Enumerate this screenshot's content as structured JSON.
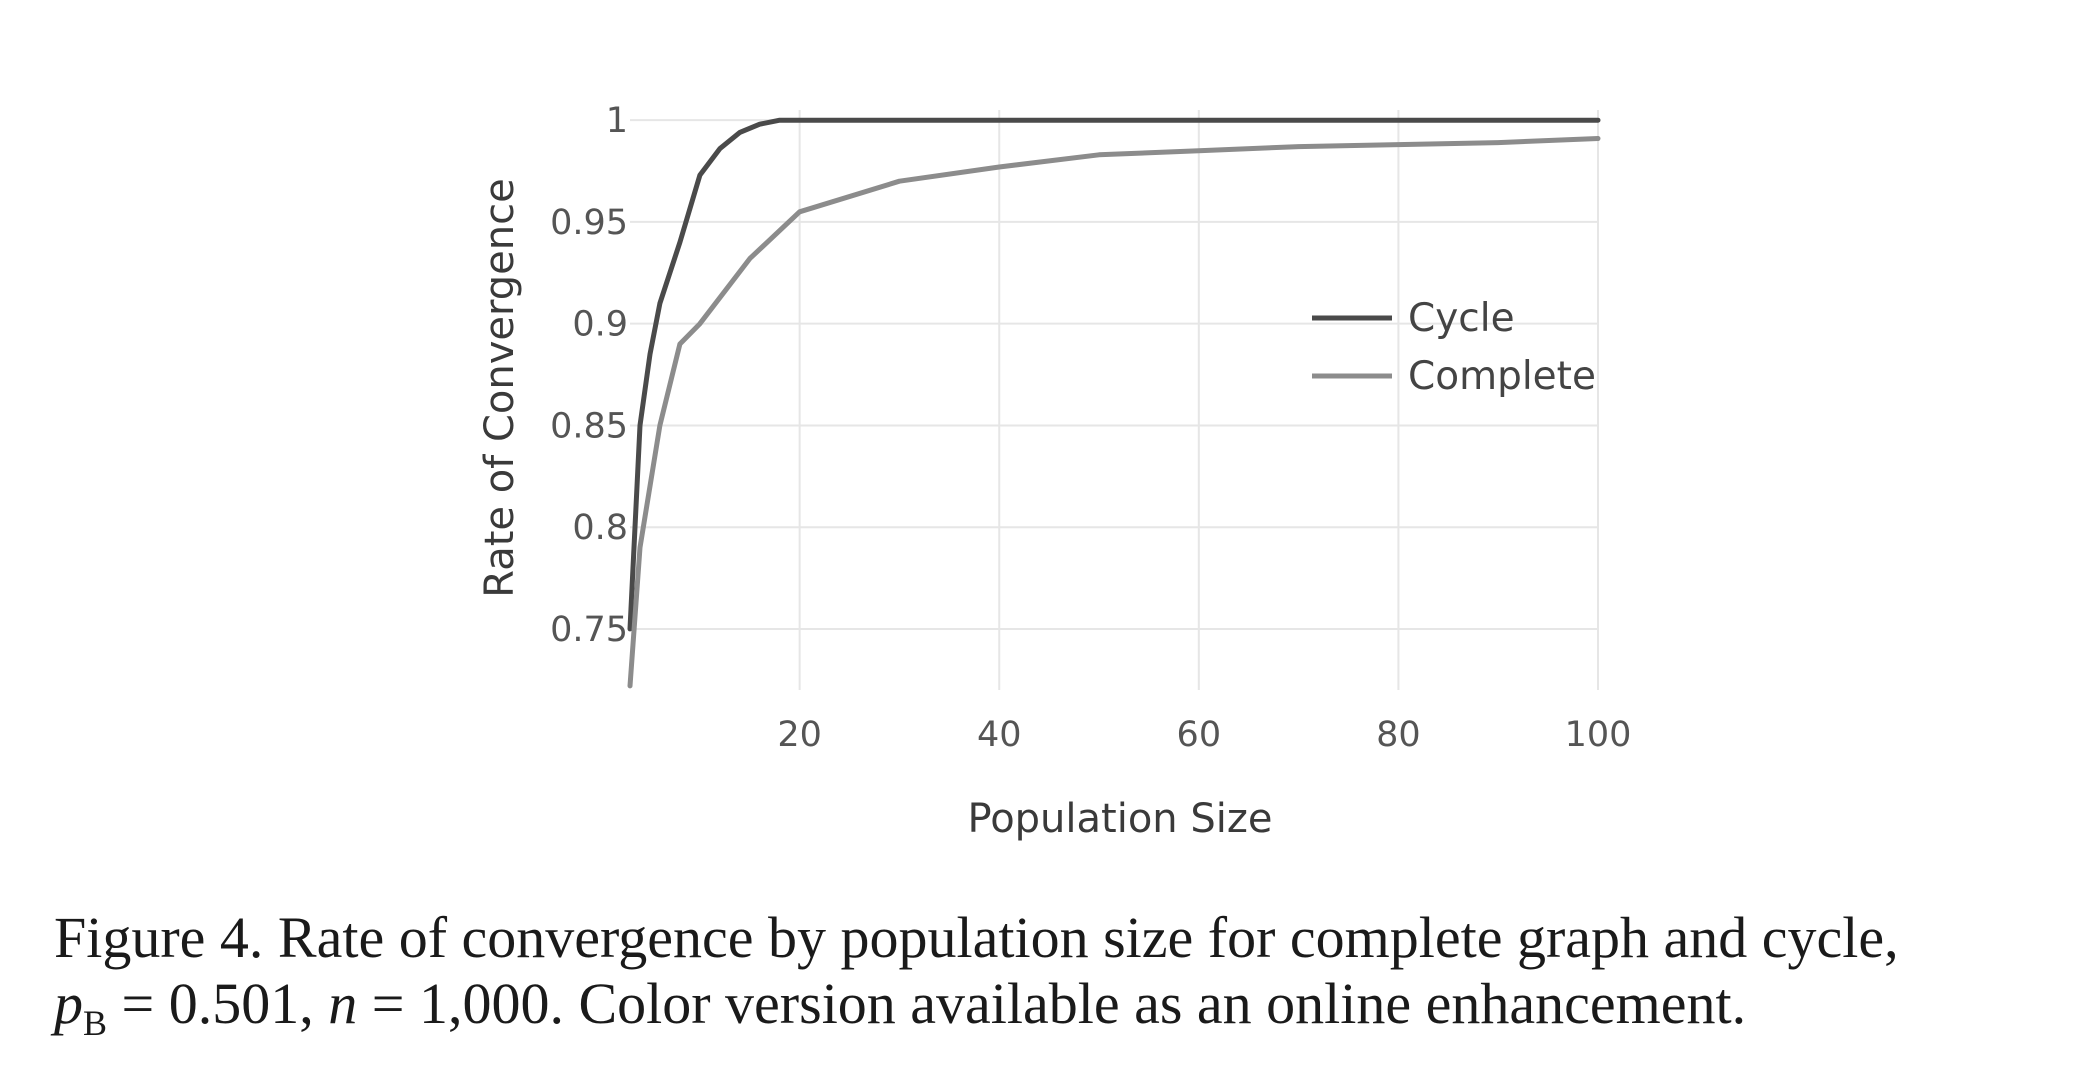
{
  "chart_data": {
    "type": "line",
    "xlabel": "Population Size",
    "ylabel": "Rate of Convergence",
    "xlim": [
      3,
      100
    ],
    "ylim": [
      0.72,
      1.005
    ],
    "x_ticks": [
      20,
      40,
      60,
      80,
      100
    ],
    "x_tick_labels": [
      "20",
      "40",
      "60",
      "80",
      "100"
    ],
    "y_ticks": [
      0.75,
      0.8,
      0.85,
      0.9,
      0.95,
      1
    ],
    "y_tick_labels": [
      "0.75",
      "0.8",
      "0.85",
      "0.9",
      "0.95",
      "1"
    ],
    "grid": true,
    "legend_position": "center-right",
    "series": [
      {
        "name": "Cycle",
        "color": "#4a4a4a",
        "x": [
          3,
          4,
          5,
          6,
          8,
          10,
          12,
          14,
          16,
          18,
          20,
          30,
          40,
          50,
          60,
          70,
          80,
          90,
          100
        ],
        "y": [
          0.75,
          0.85,
          0.885,
          0.91,
          0.94,
          0.973,
          0.986,
          0.994,
          0.998,
          1.0,
          1.0,
          1.0,
          1.0,
          1.0,
          1.0,
          1.0,
          1.0,
          1.0,
          1.0
        ]
      },
      {
        "name": "Complete",
        "color": "#8c8c8c",
        "x": [
          3,
          4,
          6,
          8,
          10,
          15,
          20,
          30,
          40,
          50,
          60,
          70,
          80,
          90,
          100
        ],
        "y": [
          0.722,
          0.79,
          0.85,
          0.89,
          0.9,
          0.932,
          0.955,
          0.97,
          0.977,
          0.983,
          0.985,
          0.987,
          0.988,
          0.989,
          0.991
        ]
      }
    ]
  },
  "caption": {
    "line1": "Figure 4.  Rate of convergence by population size for complete graph and cycle,",
    "p_symbol": "p",
    "p_subscript": "B",
    "line2_mid": " = 0.501, ",
    "n_symbol": "n",
    "line2_end": " = 1,000. Color version available as an online enhancement."
  }
}
